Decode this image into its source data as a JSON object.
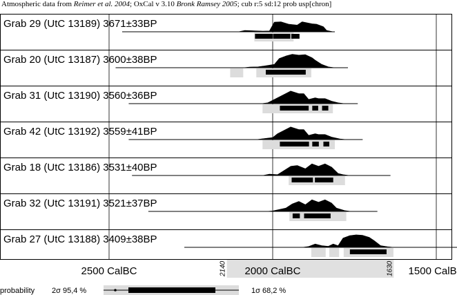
{
  "header": {
    "parts": [
      {
        "text": "Atmospheric data from ",
        "italic": false
      },
      {
        "text": "Reimer et al. 2004",
        "italic": true
      },
      {
        "text": "; OxCal v 3.10 ",
        "italic": false
      },
      {
        "text": "Bronk Ramsey 2005",
        "italic": true
      },
      {
        "text": "; cub r:5 sd:12 prob usp[chron]",
        "italic": false
      }
    ]
  },
  "chart_data": {
    "type": "area",
    "title": "",
    "x_axis": {
      "label_suffix": "CalBC",
      "ticks": [
        2500,
        2000,
        1500
      ],
      "tick_labels": [
        "2500 CalBC",
        "2000 CalBC",
        "1500 CalBC"
      ],
      "range": [
        2740,
        1420
      ],
      "direction": "older-left",
      "grid": true,
      "highlight_range": [
        2140,
        1630
      ],
      "highlight_labels": [
        "2140",
        "1630"
      ]
    },
    "rows": [
      {
        "label": "Grab 29 (UtC 13189) 3671±33BP",
        "line_range": [
          2460,
          1810
        ],
        "peaks": [
          [
            2085,
            8
          ],
          [
            2030,
            4
          ],
          [
            2010,
            5
          ],
          [
            1995,
            58
          ],
          [
            1975,
            60
          ],
          [
            1950,
            45
          ],
          [
            1925,
            40
          ],
          [
            1910,
            60
          ],
          [
            1880,
            48
          ],
          [
            1865,
            45
          ],
          [
            1845,
            30
          ],
          [
            1835,
            8
          ]
        ],
        "sigma1": [
          [
            2054,
            1999
          ],
          [
            1998,
            1946
          ],
          [
            1943,
            1918
          ]
        ],
        "sigma2": [
          [
            2056,
            1936
          ]
        ]
      },
      {
        "label": "Grab 20 (UtC 13187) 3600±38BP",
        "line_range": [
          2480,
          1770
        ],
        "peaks": [
          [
            2070,
            4
          ],
          [
            2045,
            5
          ],
          [
            2020,
            12
          ],
          [
            1995,
            20
          ],
          [
            1980,
            55
          ],
          [
            1960,
            70
          ],
          [
            1940,
            80
          ],
          [
            1920,
            75
          ],
          [
            1900,
            78
          ],
          [
            1880,
            60
          ],
          [
            1870,
            45
          ],
          [
            1850,
            20
          ],
          [
            1830,
            5
          ]
        ],
        "sigma1": [
          [
            2021,
            1899
          ]
        ],
        "sigma2": [
          [
            2130,
            2090
          ],
          [
            2050,
            1882
          ]
        ]
      },
      {
        "label": "Grab 31 (UtC 13190) 3560±36BP",
        "line_range": [
          2440,
          1740
        ],
        "peaks": [
          [
            2015,
            5
          ],
          [
            1985,
            35
          ],
          [
            1965,
            55
          ],
          [
            1945,
            75
          ],
          [
            1920,
            60
          ],
          [
            1905,
            60
          ],
          [
            1890,
            25
          ],
          [
            1870,
            35
          ],
          [
            1860,
            30
          ],
          [
            1840,
            30
          ],
          [
            1820,
            15
          ],
          [
            1800,
            5
          ]
        ],
        "sigma1": [
          [
            1978,
            1890
          ],
          [
            1879,
            1861
          ],
          [
            1849,
            1830
          ]
        ],
        "sigma2": [
          [
            2031,
            1816
          ]
        ]
      },
      {
        "label": "Grab 42 (UtC 13192) 3559±41BP",
        "line_range": [
          2440,
          1725
        ],
        "peaks": [
          [
            2030,
            5
          ],
          [
            2000,
            12
          ],
          [
            1985,
            35
          ],
          [
            1965,
            55
          ],
          [
            1945,
            75
          ],
          [
            1920,
            60
          ],
          [
            1905,
            60
          ],
          [
            1890,
            25
          ],
          [
            1870,
            35
          ],
          [
            1860,
            30
          ],
          [
            1840,
            30
          ],
          [
            1820,
            15
          ],
          [
            1795,
            4
          ]
        ],
        "sigma1": [
          [
            1978,
            1889
          ],
          [
            1879,
            1859
          ],
          [
            1845,
            1827
          ]
        ],
        "sigma2": [
          [
            2031,
            1810
          ]
        ]
      },
      {
        "label": "Grab 18 (UtC 13186) 3531±40BP",
        "line_range": [
          2430,
          1640
        ],
        "peaks": [
          [
            2010,
            8
          ],
          [
            1985,
            5
          ],
          [
            1965,
            30
          ],
          [
            1945,
            55
          ],
          [
            1925,
            60
          ],
          [
            1900,
            40
          ],
          [
            1880,
            70
          ],
          [
            1860,
            55
          ],
          [
            1840,
            70
          ],
          [
            1820,
            50
          ],
          [
            1800,
            12
          ],
          [
            1785,
            5
          ]
        ],
        "sigma1": [
          [
            1942,
            1877
          ],
          [
            1871,
            1815
          ]
        ],
        "sigma2": [
          [
            1951,
            1779
          ]
        ]
      },
      {
        "label": "Grab 32 (UtC 13191) 3521±37BP",
        "line_range": [
          2380,
          1680
        ],
        "peaks": [
          [
            2000,
            3
          ],
          [
            1960,
            20
          ],
          [
            1940,
            45
          ],
          [
            1920,
            60
          ],
          [
            1900,
            40
          ],
          [
            1880,
            70
          ],
          [
            1860,
            55
          ],
          [
            1840,
            70
          ],
          [
            1820,
            50
          ],
          [
            1805,
            20
          ],
          [
            1780,
            5
          ]
        ],
        "sigma1": [
          [
            1939,
            1917
          ],
          [
            1904,
            1823
          ]
        ],
        "sigma2": [
          [
            1949,
            1775
          ]
        ]
      },
      {
        "label": "Grab 27 (UtC 13188) 3409±38BP",
        "line_range": [
          2270,
          1420
        ],
        "peaks": [
          [
            1890,
            5
          ],
          [
            1870,
            20
          ],
          [
            1850,
            10
          ],
          [
            1830,
            6
          ],
          [
            1815,
            20
          ],
          [
            1800,
            10
          ],
          [
            1785,
            55
          ],
          [
            1765,
            70
          ],
          [
            1745,
            75
          ],
          [
            1725,
            72
          ],
          [
            1705,
            60
          ],
          [
            1690,
            40
          ],
          [
            1670,
            10
          ],
          [
            1650,
            4
          ]
        ],
        "sigma1": [
          [
            1764,
            1652
          ]
        ],
        "sigma2": [
          [
            1882,
            1838
          ],
          [
            1827,
            1797
          ],
          [
            1783,
            1631
          ]
        ]
      }
    ],
    "legend": {
      "prefix": "probability",
      "sigma2_label": "2σ 95,4 %",
      "sigma1_label": "1σ 68,2 %"
    }
  },
  "colors": {
    "curve": "#000000",
    "sigma1": "#000000",
    "sigma2": "#dcdcdc",
    "grid": "#000000",
    "highlight": "#e0e0e0"
  }
}
